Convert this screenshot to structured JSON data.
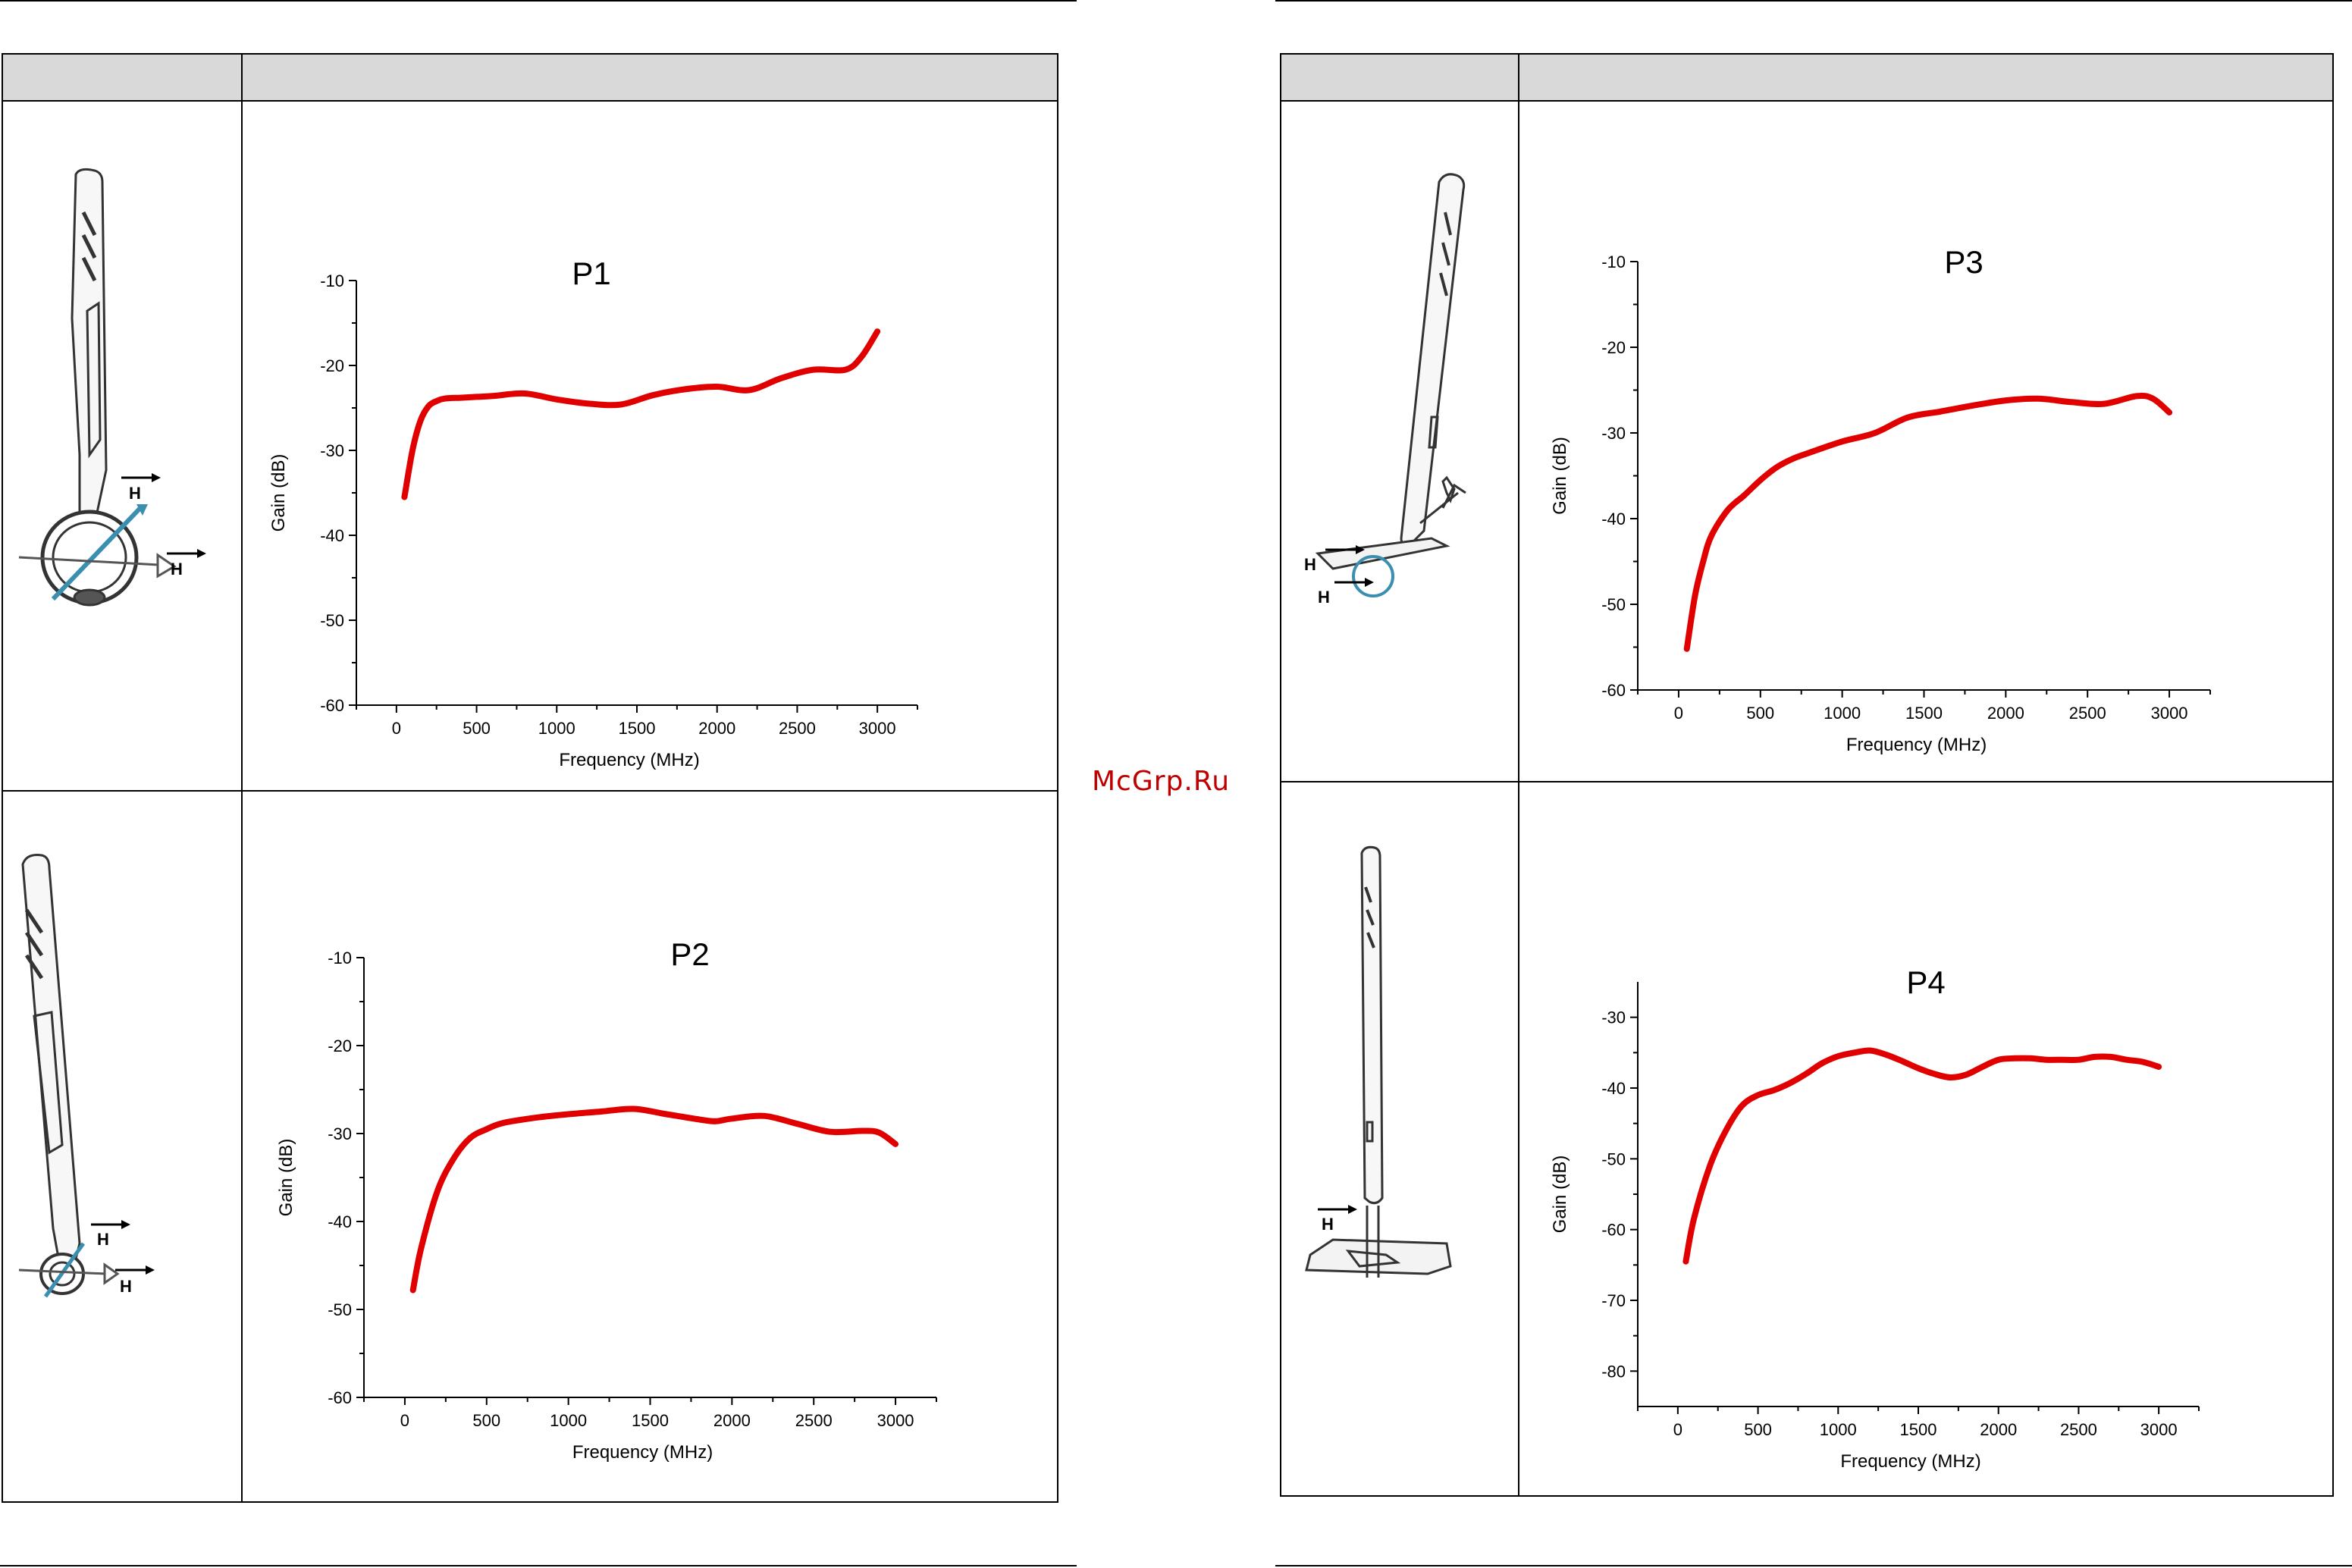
{
  "watermark": "McGrp.Ru",
  "colors": {
    "curve": "#e00000",
    "header": "#d9d9d9",
    "probe": "#3a8fb0"
  },
  "icons": [
    "probe-p1-illustration",
    "probe-p2-illustration",
    "probe-p3-illustration",
    "probe-p4-illustration"
  ],
  "probe_labels": {
    "field": "H"
  },
  "chart_data": [
    {
      "type": "line",
      "title": "P1",
      "xlabel": "Frequency (MHz)",
      "ylabel": "Gain (dB)",
      "xlim": [
        0,
        3000
      ],
      "ylim": [
        -60,
        -10
      ],
      "xticks": [
        0,
        500,
        1000,
        1500,
        2000,
        2500,
        3000
      ],
      "yticks": [
        -10,
        -20,
        -30,
        -40,
        -50,
        -60
      ],
      "xtick_labels": [
        "0",
        "500",
        "1000",
        "1500",
        "2000",
        "2500",
        "3000"
      ],
      "ytick_labels": [
        "-10",
        "-20",
        "-30",
        "-40",
        "-50",
        "-60"
      ],
      "x": [
        50,
        100,
        150,
        200,
        250,
        300,
        400,
        500,
        600,
        800,
        1000,
        1200,
        1400,
        1600,
        1800,
        2000,
        2200,
        2400,
        2600,
        2800,
        2900,
        3000
      ],
      "y": [
        -35.5,
        -30,
        -26.5,
        -24.8,
        -24.2,
        -23.9,
        -23.8,
        -23.7,
        -23.6,
        -23.3,
        -24,
        -24.5,
        -24.6,
        -23.5,
        -22.8,
        -22.5,
        -22.9,
        -21.5,
        -20.5,
        -20.5,
        -19,
        -16
      ]
    },
    {
      "type": "line",
      "title": "P2",
      "xlabel": "Frequency (MHz)",
      "ylabel": "Gain (dB)",
      "xlim": [
        0,
        3000
      ],
      "ylim": [
        -60,
        -10
      ],
      "xticks": [
        0,
        500,
        1000,
        1500,
        2000,
        2500,
        3000
      ],
      "yticks": [
        -10,
        -20,
        -30,
        -40,
        -50,
        -60
      ],
      "xtick_labels": [
        "0",
        "500",
        "1000",
        "1500",
        "2000",
        "2500",
        "3000"
      ],
      "ytick_labels": [
        "-10",
        "-20",
        "-30",
        "-40",
        "-50",
        "-60"
      ],
      "x": [
        50,
        100,
        200,
        300,
        400,
        500,
        600,
        800,
        1000,
        1200,
        1400,
        1600,
        1800,
        1900,
        2000,
        2200,
        2400,
        2600,
        2800,
        2900,
        3000
      ],
      "y": [
        -47.8,
        -43,
        -36.5,
        -32.8,
        -30.5,
        -29.5,
        -28.8,
        -28.2,
        -27.8,
        -27.5,
        -27.2,
        -27.8,
        -28.4,
        -28.6,
        -28.3,
        -28,
        -28.9,
        -29.8,
        -29.7,
        -29.9,
        -31.2
      ]
    },
    {
      "type": "line",
      "title": "P3",
      "xlabel": "Frequency (MHz)",
      "ylabel": "Gain (dB)",
      "xlim": [
        0,
        3000
      ],
      "ylim": [
        -60,
        -10
      ],
      "xticks": [
        0,
        500,
        1000,
        1500,
        2000,
        2500,
        3000
      ],
      "yticks": [
        -10,
        -20,
        -30,
        -40,
        -50,
        -60
      ],
      "xtick_labels": [
        "0",
        "500",
        "1000",
        "1500",
        "2000",
        "2500",
        "3000"
      ],
      "ytick_labels": [
        "-10",
        "-20",
        "-30",
        "-40",
        "-50",
        "-60"
      ],
      "x": [
        50,
        100,
        150,
        200,
        300,
        400,
        500,
        600,
        700,
        800,
        1000,
        1200,
        1400,
        1600,
        1800,
        2000,
        2200,
        2400,
        2600,
        2800,
        2900,
        3000
      ],
      "y": [
        -55.2,
        -49,
        -45,
        -42,
        -39,
        -37.3,
        -35.5,
        -34,
        -33,
        -32.3,
        -31,
        -30,
        -28.2,
        -27.5,
        -26.8,
        -26.2,
        -26,
        -26.4,
        -26.6,
        -25.7,
        -26,
        -27.6
      ]
    },
    {
      "type": "line",
      "title": "P4",
      "xlabel": "Frequency (MHz)",
      "ylabel": "Gain (dB)",
      "xlim": [
        0,
        3000
      ],
      "ylim": [
        -85,
        -25
      ],
      "xticks": [
        0,
        500,
        1000,
        1500,
        2000,
        2500,
        3000
      ],
      "yticks": [
        -30,
        -40,
        -50,
        -60,
        -70,
        -80
      ],
      "xtick_labels": [
        "0",
        "500",
        "1000",
        "1500",
        "2000",
        "2500",
        "3000"
      ],
      "ytick_labels": [
        "-30",
        "-40",
        "-50",
        "-60",
        "-70",
        "-80"
      ],
      "x": [
        50,
        100,
        200,
        300,
        400,
        500,
        600,
        700,
        800,
        900,
        1000,
        1100,
        1200,
        1300,
        1400,
        1500,
        1600,
        1700,
        1800,
        1900,
        2000,
        2100,
        2200,
        2300,
        2400,
        2500,
        2600,
        2700,
        2800,
        2900,
        3000
      ],
      "y": [
        -64.5,
        -58.5,
        -51,
        -46,
        -42.5,
        -41,
        -40.3,
        -39.3,
        -38,
        -36.5,
        -35.5,
        -35,
        -34.7,
        -35.3,
        -36.2,
        -37.2,
        -38,
        -38.5,
        -38.1,
        -37,
        -36,
        -35.8,
        -35.8,
        -36,
        -36,
        -36,
        -35.6,
        -35.6,
        -36,
        -36.3,
        -37
      ]
    }
  ]
}
